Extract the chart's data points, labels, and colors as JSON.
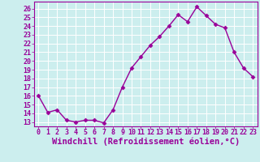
{
  "x": [
    0,
    1,
    2,
    3,
    4,
    5,
    6,
    7,
    8,
    9,
    10,
    11,
    12,
    13,
    14,
    15,
    16,
    17,
    18,
    19,
    20,
    21,
    22,
    23
  ],
  "y": [
    16,
    14.1,
    14.4,
    13.2,
    13.0,
    13.2,
    13.2,
    12.9,
    14.4,
    17.0,
    19.2,
    20.5,
    21.8,
    22.8,
    24.0,
    25.3,
    24.5,
    26.2,
    25.2,
    24.2,
    23.8,
    21.0,
    19.2,
    18.2
  ],
  "line_color": "#990099",
  "marker": "D",
  "markersize": 2.5,
  "linewidth": 1,
  "bg_color": "#cceeee",
  "grid_color": "#aadddd",
  "xlabel": "Windchill (Refroidissement éolien,°C)",
  "xlabel_fontsize": 7.5,
  "xlabel_color": "#990099",
  "tick_color": "#990099",
  "ylim": [
    12.5,
    26.8
  ],
  "yticks": [
    13,
    14,
    15,
    16,
    17,
    18,
    19,
    20,
    21,
    22,
    23,
    24,
    25,
    26
  ],
  "xticks": [
    0,
    1,
    2,
    3,
    4,
    5,
    6,
    7,
    8,
    9,
    10,
    11,
    12,
    13,
    14,
    15,
    16,
    17,
    18,
    19,
    20,
    21,
    22,
    23
  ],
  "tick_fontsize": 6,
  "spine_color": "#990099"
}
